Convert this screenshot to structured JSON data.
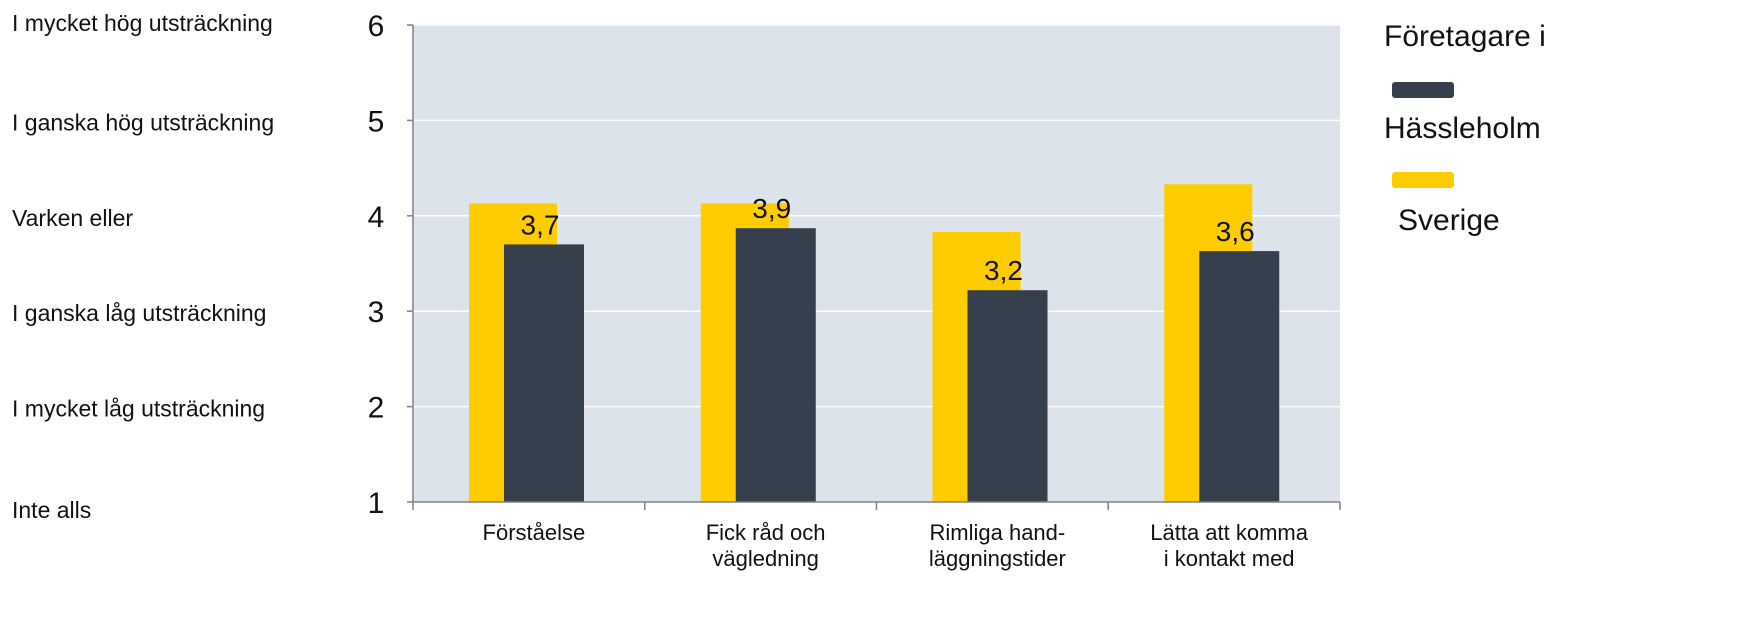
{
  "chart_data": {
    "type": "bar",
    "title": "",
    "xlabel": "",
    "ylabel": "",
    "ylim": [
      1,
      6
    ],
    "y_ticks": [
      1,
      2,
      3,
      4,
      5,
      6
    ],
    "y_scale_labels": [
      "Inte alls",
      "I mycket låg utsträckning",
      "I ganska låg utsträckning",
      "Varken eller",
      "I ganska hög utsträckning",
      "I mycket hög utsträckning"
    ],
    "categories": [
      [
        "Förståelse"
      ],
      [
        "Fick råd och",
        "vägledning"
      ],
      [
        "Rimliga hand-",
        "läggningstider"
      ],
      [
        "Lätta att komma",
        "i kontakt med"
      ]
    ],
    "series": [
      {
        "name": "Sverige",
        "color": "#FFCC00",
        "values": [
          4.13,
          4.13,
          3.83,
          4.33
        ],
        "show_labels": false
      },
      {
        "name": "Hässleholm",
        "color": "#36404D",
        "values": [
          3.7,
          3.87,
          3.22,
          3.63
        ],
        "labels": [
          "3,7",
          "3,9",
          "3,2",
          "3,6"
        ],
        "show_labels": true
      }
    ],
    "legend": {
      "title": "Företagare i",
      "placement": "right",
      "entries": [
        {
          "color": "#36404D",
          "label": "Hässleholm"
        },
        {
          "color": "#FFCC00",
          "label": "Sverige"
        }
      ]
    },
    "grid": true,
    "plot_background": "#DCE3EA",
    "grid_color": "#FFFFFF",
    "axis_color": "#808080"
  }
}
